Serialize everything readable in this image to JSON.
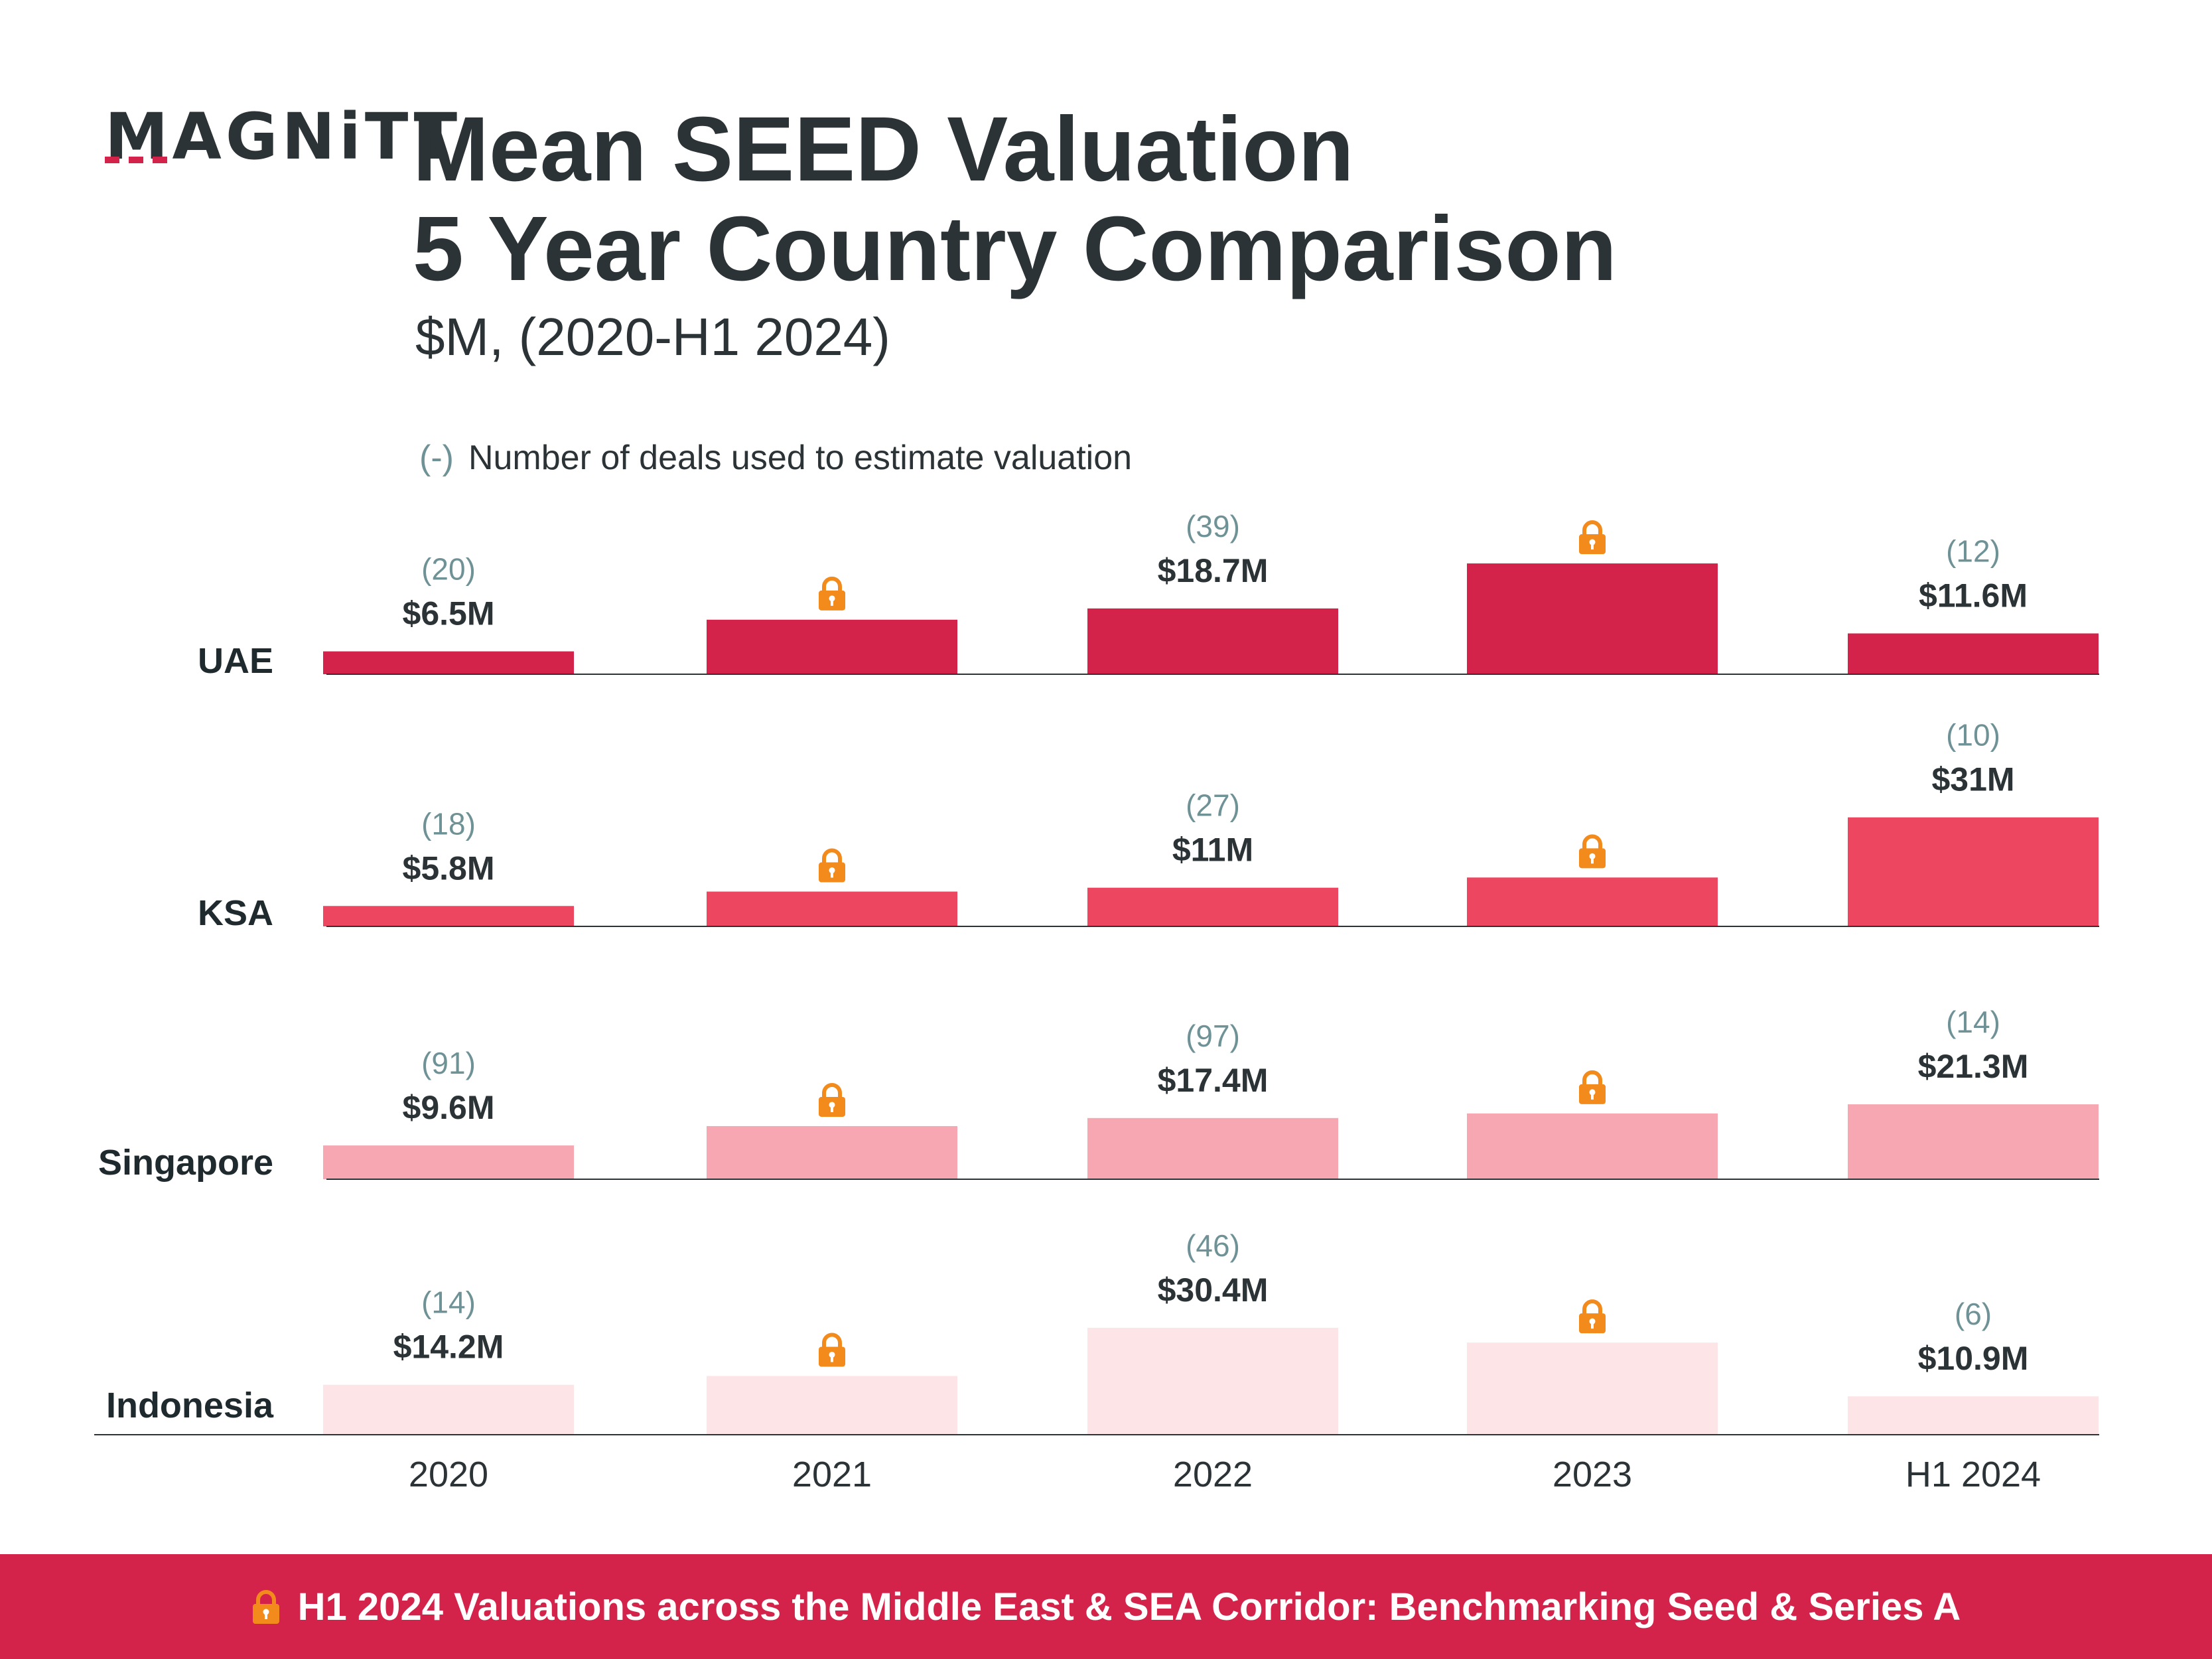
{
  "brand": {
    "logo": "MAGNiTT"
  },
  "title_line1": "Mean SEED Valuation",
  "title_line2": "5 Year Country Comparison",
  "subtitle": "$M, (2020-H1 2024)",
  "legend": {
    "symbol": "(-)",
    "text": "Number of deals used to estimate valuation"
  },
  "footer": {
    "text": "H1 2024 Valuations across the Middle East & SEA Corridor:  Benchmarking Seed & Series A",
    "icon": "lock-icon"
  },
  "colors": {
    "UAE": "#d4234a",
    "KSA": "#ec4660",
    "Singapore": "#f7a7b1",
    "Indonesia": "#fde4e7",
    "lock": "#f38a1c",
    "deal_count": "#6f9297",
    "text": "#2b3336",
    "footer_bg": "#d4234a"
  },
  "chart_data": {
    "type": "bar",
    "title": "Mean SEED Valuation 5 Year Country Comparison",
    "subtitle": "$M, (2020-H1 2024)",
    "unit": "$M",
    "categories": [
      "2020",
      "2021",
      "2022",
      "2023",
      "H1 2024"
    ],
    "locked_marker": "locked (value not shown)",
    "series": [
      {
        "name": "UAE",
        "values": [
          6.5,
          15.5,
          18.7,
          31.5,
          11.6
        ],
        "labels": [
          "$6.5M",
          null,
          "$18.7M",
          null,
          "$11.6M"
        ],
        "deals": [
          "(20)",
          null,
          "(39)",
          null,
          "(12)"
        ],
        "locked": [
          false,
          true,
          false,
          true,
          false
        ]
      },
      {
        "name": "KSA",
        "values": [
          5.8,
          9.9,
          11,
          13.9,
          31
        ],
        "labels": [
          "$5.8M",
          null,
          "$11M",
          null,
          "$31M"
        ],
        "deals": [
          "(18)",
          null,
          "(27)",
          null,
          "(10)"
        ],
        "locked": [
          false,
          true,
          false,
          true,
          false
        ]
      },
      {
        "name": "Singapore",
        "values": [
          9.6,
          15.1,
          17.4,
          18.7,
          21.3
        ],
        "labels": [
          "$9.6M",
          null,
          "$17.4M",
          null,
          "$21.3M"
        ],
        "deals": [
          "(91)",
          null,
          "(97)",
          null,
          "(14)"
        ],
        "locked": [
          false,
          true,
          false,
          true,
          false
        ]
      },
      {
        "name": "Indonesia",
        "values": [
          14.2,
          16.7,
          30.4,
          26.2,
          10.9
        ],
        "labels": [
          "$14.2M",
          null,
          "$30.4M",
          null,
          "$10.9M"
        ],
        "deals": [
          "(14)",
          null,
          "(46)",
          null,
          "(6)"
        ],
        "locked": [
          false,
          true,
          false,
          true,
          false
        ]
      }
    ]
  }
}
